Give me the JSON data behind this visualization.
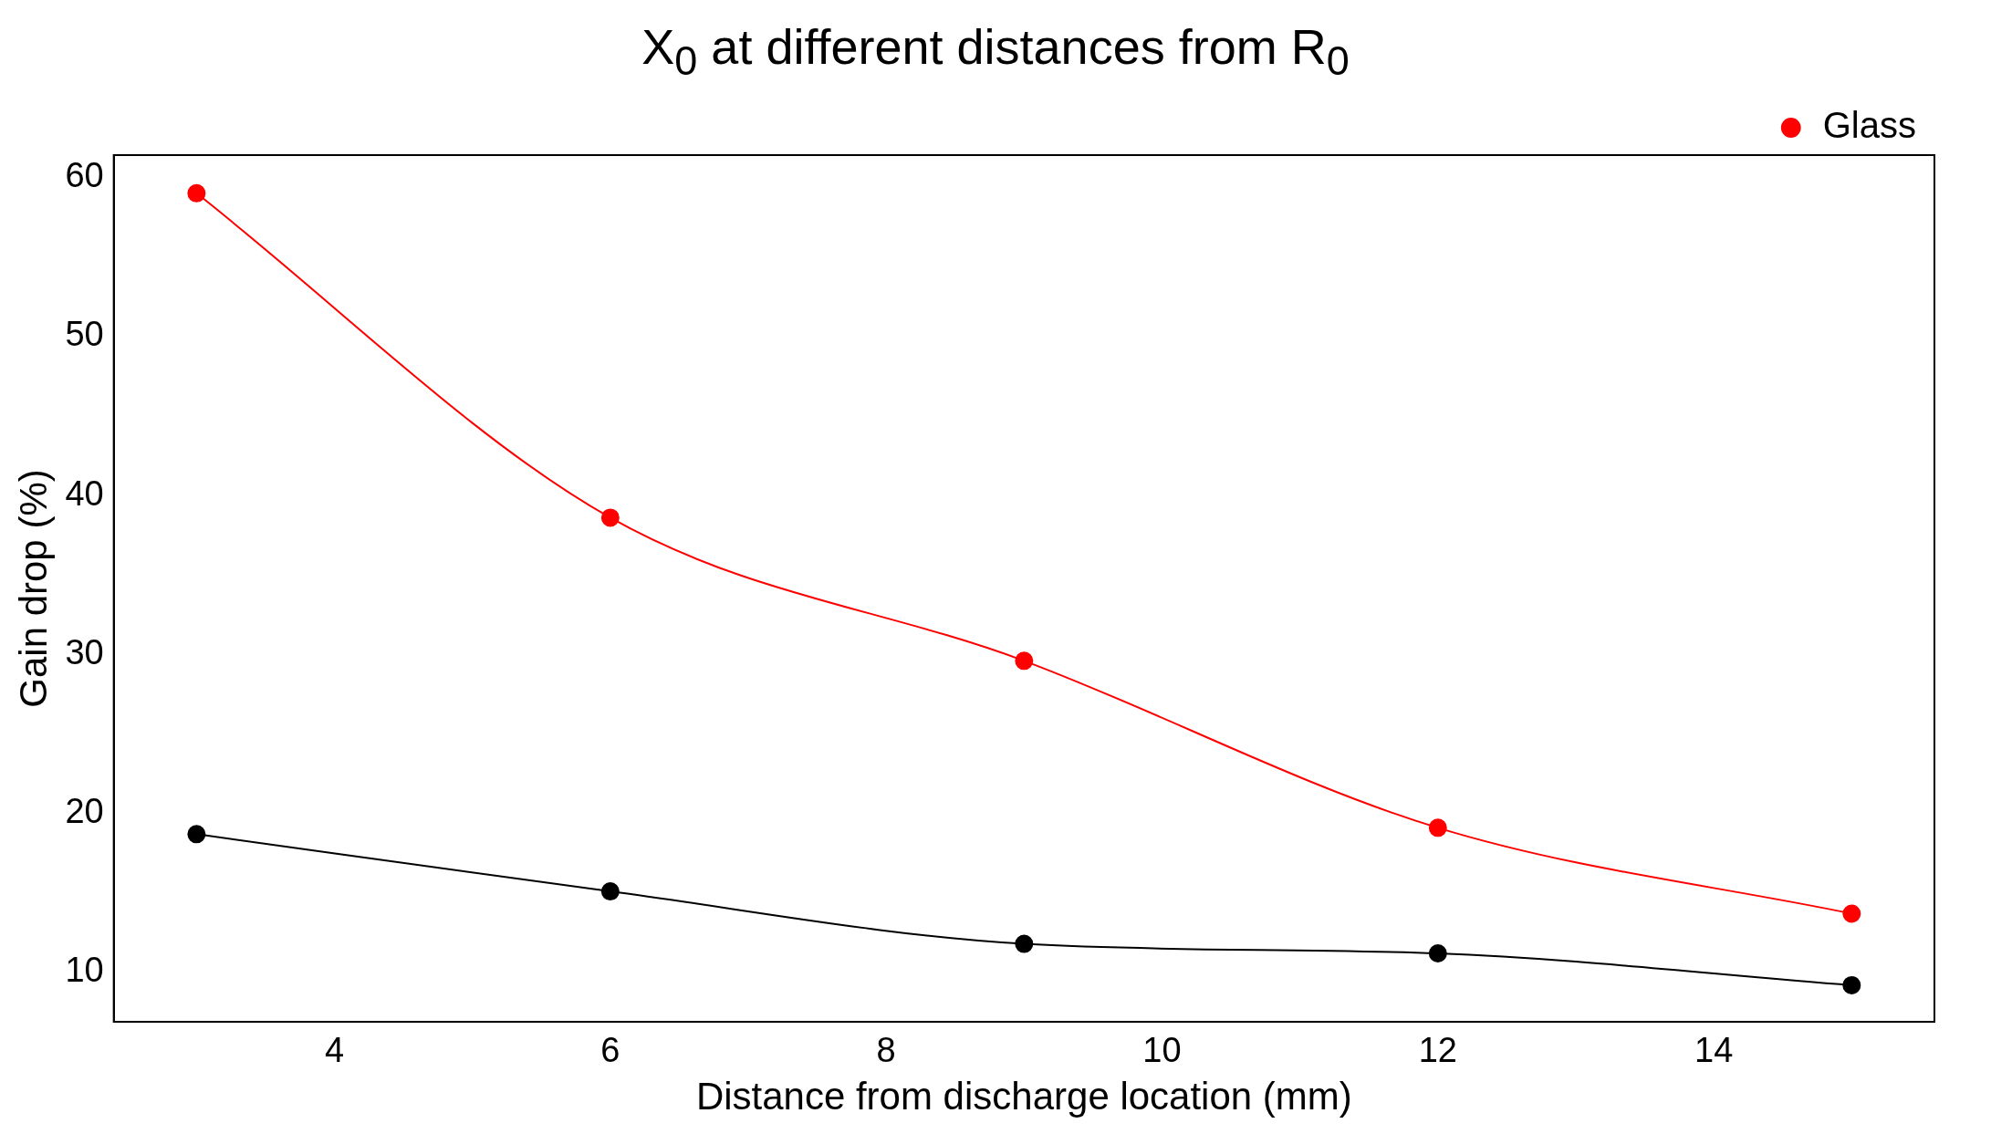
{
  "chart_data": {
    "type": "line",
    "title": "X$_{0}$ at different distances from R$_{0}$",
    "xlabel": "Distance from discharge location (mm)",
    "ylabel": "Gain drop (%)",
    "x": [
      3,
      6,
      9,
      12,
      15
    ],
    "series": [
      {
        "color": "#000000",
        "values": [
          18.7,
          15.1,
          11.8,
          11.2,
          9.2
        ]
      },
      {
        "name": "Glass",
        "color": "#ff0000",
        "values": [
          59.0,
          38.6,
          29.6,
          19.1,
          13.7
        ]
      }
    ],
    "xlim": [
      2.4,
      15.6
    ],
    "xticks": [
      4,
      6,
      8,
      10,
      12,
      14
    ],
    "ylim": [
      6.9,
      61.4
    ],
    "yticks": [
      10,
      20,
      30,
      40,
      50,
      60
    ],
    "grid": false,
    "legend": "top right",
    "marker": "circle",
    "line_style": "solid"
  }
}
